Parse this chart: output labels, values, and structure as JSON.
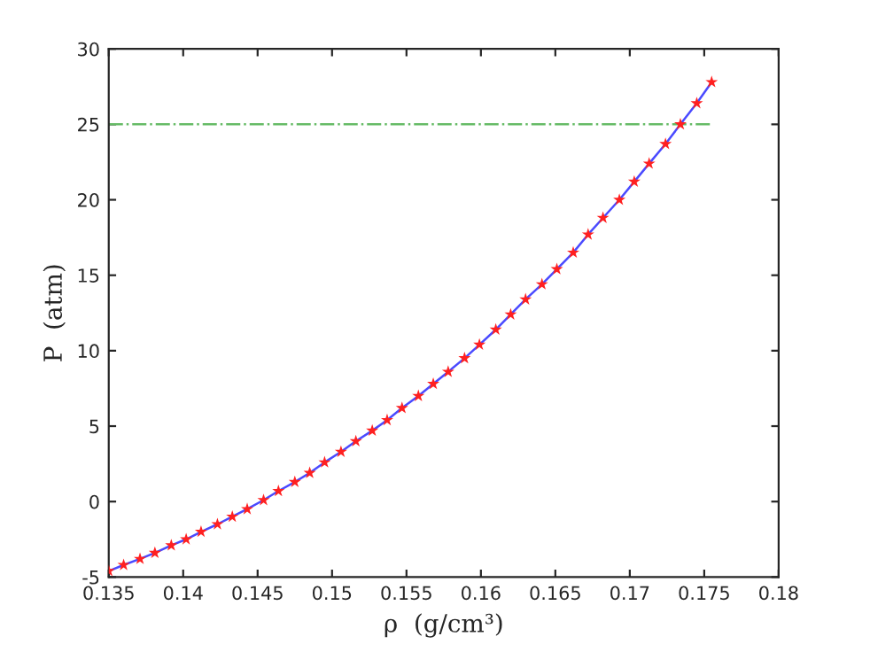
{
  "chart_data": {
    "type": "line",
    "xlabel": "ρ  (g/cm³)",
    "ylabel": "P  (atm)",
    "x": [
      0.135,
      0.136,
      0.1371,
      0.1381,
      0.1392,
      0.1402,
      0.1412,
      0.1423,
      0.1433,
      0.1443,
      0.1454,
      0.1464,
      0.1475,
      0.1485,
      0.1495,
      0.1506,
      0.1516,
      0.1527,
      0.1537,
      0.1547,
      0.1558,
      0.1568,
      0.1578,
      0.1589,
      0.1599,
      0.161,
      0.162,
      0.163,
      0.1641,
      0.1651,
      0.1662,
      0.1672,
      0.1682,
      0.1693,
      0.1703,
      0.1713,
      0.1724,
      0.1734,
      0.1745,
      0.1755
    ],
    "series": [
      {
        "color": "#4a4aff",
        "marker": "none",
        "line_style": "solid",
        "values": [
          -4.6,
          -4.2,
          -3.8,
          -3.4,
          -2.9,
          -2.5,
          -2.0,
          -1.5,
          -1.0,
          -0.5,
          0.1,
          0.7,
          1.3,
          1.9,
          2.6,
          3.3,
          4.0,
          4.7,
          5.4,
          6.2,
          7.0,
          7.8,
          8.6,
          9.5,
          10.4,
          11.4,
          12.4,
          13.4,
          14.4,
          15.4,
          16.5,
          17.7,
          18.8,
          20.0,
          21.2,
          22.4,
          23.7,
          25.0,
          26.4,
          27.8
        ]
      },
      {
        "type": "scatter",
        "color": "#ff2020",
        "marker": "star",
        "values": [
          -4.6,
          -4.2,
          -3.8,
          -3.4,
          -2.9,
          -2.5,
          -2.0,
          -1.5,
          -1.0,
          -0.5,
          0.1,
          0.7,
          1.3,
          1.9,
          2.6,
          3.3,
          4.0,
          4.7,
          5.4,
          6.2,
          7.0,
          7.8,
          8.6,
          9.5,
          10.4,
          11.4,
          12.4,
          13.4,
          14.4,
          15.4,
          16.5,
          17.7,
          18.8,
          20.0,
          21.2,
          22.4,
          23.7,
          25.0,
          26.4,
          27.8
        ]
      },
      {
        "type": "line",
        "color": "#66bb66",
        "marker": "none",
        "line_style": "dashdot",
        "x": [
          0.135,
          0.1755
        ],
        "values": [
          25,
          25
        ]
      }
    ],
    "xlim": [
      0.135,
      0.18
    ],
    "xticks": [
      0.135,
      0.14,
      0.145,
      0.15,
      0.155,
      0.16,
      0.165,
      0.17,
      0.175,
      0.18
    ],
    "ylim": [
      -5,
      30
    ],
    "yticks": [
      -5,
      0,
      5,
      10,
      15,
      20,
      25,
      30
    ],
    "grid": false,
    "legend": false
  }
}
